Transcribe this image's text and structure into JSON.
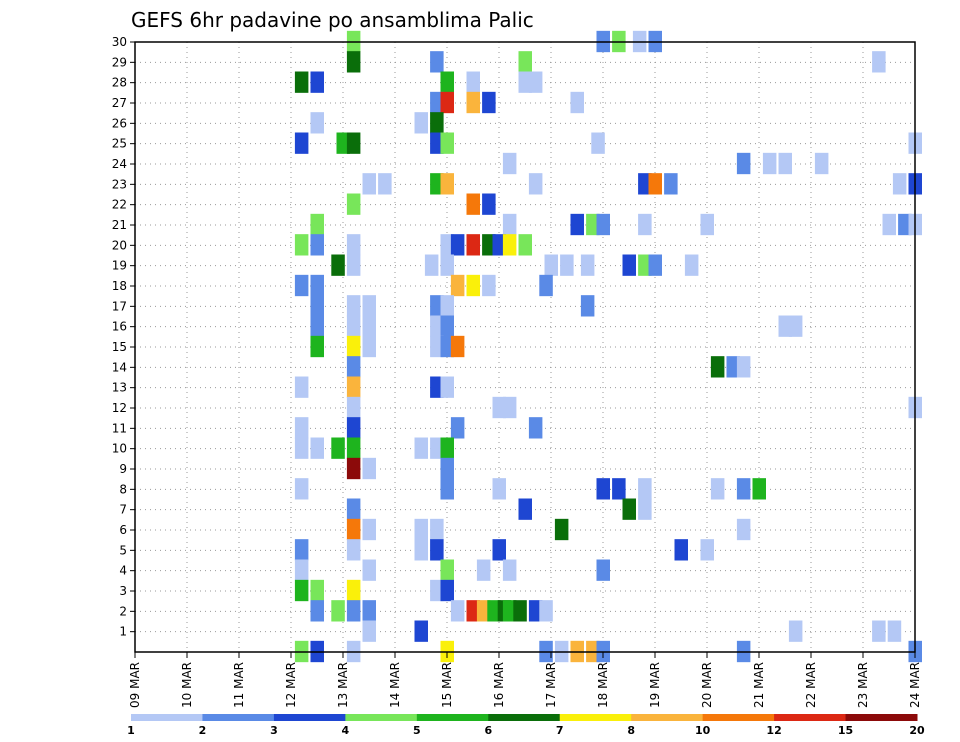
{
  "chart_data": {
    "type": "heatmap",
    "title": "GEFS 6hr padavine po ansamblima Palic",
    "x_tick_labels": [
      "09 MAR",
      "10 MAR",
      "11 MAR",
      "12 MAR",
      "13 MAR",
      "14 MAR",
      "15 MAR",
      "16 MAR",
      "17 MAR",
      "18 MAR",
      "19 MAR",
      "20 MAR",
      "21 MAR",
      "22 MAR",
      "23 MAR",
      "24 MAR"
    ],
    "y_tick_labels": [
      "1",
      "2",
      "3",
      "4",
      "5",
      "6",
      "7",
      "8",
      "9",
      "10",
      "11",
      "12",
      "13",
      "14",
      "15",
      "16",
      "17",
      "18",
      "19",
      "20",
      "21",
      "22",
      "23",
      "24",
      "25",
      "26",
      "27",
      "28",
      "29",
      "30"
    ],
    "xlim_days": [
      9,
      24
    ],
    "ylim": [
      0,
      30
    ],
    "grid": true,
    "legend": {
      "placement": "bottom",
      "levels": [
        "1",
        "2",
        "3",
        "4",
        "5",
        "6",
        "7",
        "8",
        "10",
        "12",
        "15",
        "20"
      ],
      "colors": [
        "#b4c8f5",
        "#5a8ae6",
        "#1e46d2",
        "#78e65a",
        "#1eb41e",
        "#0a6e0a",
        "#faf00a",
        "#fab43c",
        "#f5780a",
        "#dc2814",
        "#8c0a0a"
      ]
    },
    "cells_note_format": "[member, day_of_march, level_index]",
    "cells": [
      [
        30,
        13.2,
        3
      ],
      [
        30,
        18.0,
        1
      ],
      [
        30,
        18.3,
        3
      ],
      [
        30,
        18.7,
        0
      ],
      [
        30,
        19.0,
        1
      ],
      [
        29,
        13.2,
        5
      ],
      [
        29,
        14.8,
        1
      ],
      [
        29,
        16.5,
        3
      ],
      [
        29,
        23.3,
        0
      ],
      [
        28,
        12.2,
        5
      ],
      [
        28,
        12.5,
        2
      ],
      [
        28,
        15.0,
        4
      ],
      [
        28,
        15.5,
        0
      ],
      [
        28,
        16.5,
        0
      ],
      [
        28,
        16.7,
        0
      ],
      [
        27,
        14.8,
        1
      ],
      [
        27,
        15.0,
        9
      ],
      [
        27,
        15.5,
        7
      ],
      [
        27,
        15.8,
        2
      ],
      [
        27,
        17.5,
        0
      ],
      [
        26,
        12.5,
        0
      ],
      [
        26,
        14.5,
        0
      ],
      [
        26,
        14.8,
        5
      ],
      [
        25,
        12.2,
        2
      ],
      [
        25,
        13.0,
        4
      ],
      [
        25,
        13.2,
        5
      ],
      [
        25,
        14.8,
        2
      ],
      [
        25,
        15.0,
        3
      ],
      [
        25,
        17.9,
        0
      ],
      [
        25,
        24.0,
        0
      ],
      [
        24,
        16.2,
        0
      ],
      [
        24,
        20.7,
        1
      ],
      [
        24,
        21.2,
        0
      ],
      [
        24,
        21.5,
        0
      ],
      [
        24,
        22.2,
        0
      ],
      [
        23,
        13.5,
        0
      ],
      [
        23,
        13.8,
        0
      ],
      [
        23,
        14.8,
        4
      ],
      [
        23,
        15.0,
        7
      ],
      [
        23,
        16.7,
        0
      ],
      [
        23,
        18.8,
        2
      ],
      [
        23,
        19.0,
        8
      ],
      [
        23,
        19.3,
        1
      ],
      [
        23,
        23.7,
        0
      ],
      [
        23,
        24.0,
        2
      ],
      [
        22,
        13.2,
        3
      ],
      [
        22,
        15.5,
        8
      ],
      [
        22,
        15.8,
        2
      ],
      [
        21,
        12.5,
        3
      ],
      [
        21,
        16.2,
        0
      ],
      [
        21,
        17.5,
        2
      ],
      [
        21,
        17.8,
        3
      ],
      [
        21,
        18.0,
        1
      ],
      [
        21,
        18.8,
        0
      ],
      [
        21,
        20.0,
        0
      ],
      [
        21,
        23.5,
        0
      ],
      [
        21,
        23.8,
        1
      ],
      [
        21,
        24.0,
        0
      ],
      [
        20,
        12.2,
        3
      ],
      [
        20,
        12.5,
        1
      ],
      [
        20,
        13.2,
        0
      ],
      [
        20,
        15.0,
        0
      ],
      [
        20,
        15.2,
        2
      ],
      [
        20,
        15.5,
        9
      ],
      [
        20,
        15.8,
        5
      ],
      [
        20,
        16.0,
        2
      ],
      [
        20,
        16.2,
        6
      ],
      [
        20,
        16.5,
        3
      ],
      [
        19,
        12.9,
        5
      ],
      [
        19,
        13.2,
        0
      ],
      [
        19,
        14.7,
        0
      ],
      [
        19,
        15.0,
        0
      ],
      [
        19,
        17.0,
        0
      ],
      [
        19,
        17.3,
        0
      ],
      [
        19,
        17.7,
        0
      ],
      [
        19,
        18.5,
        2
      ],
      [
        19,
        18.8,
        3
      ],
      [
        19,
        19.0,
        1
      ],
      [
        19,
        19.7,
        0
      ],
      [
        18,
        12.2,
        1
      ],
      [
        18,
        12.5,
        1
      ],
      [
        18,
        15.2,
        7
      ],
      [
        18,
        15.5,
        6
      ],
      [
        18,
        15.8,
        0
      ],
      [
        18,
        16.9,
        1
      ],
      [
        17,
        12.5,
        1
      ],
      [
        17,
        13.2,
        0
      ],
      [
        17,
        13.5,
        0
      ],
      [
        17,
        14.8,
        1
      ],
      [
        17,
        15.0,
        0
      ],
      [
        17,
        17.7,
        1
      ],
      [
        16,
        12.5,
        1
      ],
      [
        16,
        13.2,
        0
      ],
      [
        16,
        13.5,
        0
      ],
      [
        16,
        14.8,
        0
      ],
      [
        16,
        15.0,
        1
      ],
      [
        16,
        21.5,
        0
      ],
      [
        16,
        21.7,
        0
      ],
      [
        15,
        12.5,
        4
      ],
      [
        15,
        13.2,
        6
      ],
      [
        15,
        13.5,
        0
      ],
      [
        15,
        14.8,
        0
      ],
      [
        15,
        15.0,
        1
      ],
      [
        15,
        15.2,
        8
      ],
      [
        14,
        13.2,
        1
      ],
      [
        14,
        20.2,
        5
      ],
      [
        14,
        20.5,
        1
      ],
      [
        14,
        20.7,
        0
      ],
      [
        13,
        12.2,
        0
      ],
      [
        13,
        13.2,
        7
      ],
      [
        13,
        14.8,
        2
      ],
      [
        13,
        15.0,
        0
      ],
      [
        12,
        13.2,
        0
      ],
      [
        12,
        16.0,
        0
      ],
      [
        12,
        16.2,
        0
      ],
      [
        12,
        24.0,
        0
      ],
      [
        11,
        12.2,
        0
      ],
      [
        11,
        13.2,
        2
      ],
      [
        11,
        15.2,
        1
      ],
      [
        11,
        16.7,
        1
      ],
      [
        10,
        12.2,
        0
      ],
      [
        10,
        12.5,
        0
      ],
      [
        10,
        12.9,
        4
      ],
      [
        10,
        13.2,
        4
      ],
      [
        10,
        14.5,
        0
      ],
      [
        10,
        14.8,
        0
      ],
      [
        10,
        15.0,
        4
      ],
      [
        9,
        13.2,
        10
      ],
      [
        9,
        13.5,
        0
      ],
      [
        9,
        15.0,
        1
      ],
      [
        8,
        12.2,
        0
      ],
      [
        8,
        15.0,
        1
      ],
      [
        8,
        16.0,
        0
      ],
      [
        8,
        18.0,
        2
      ],
      [
        8,
        18.3,
        2
      ],
      [
        8,
        18.8,
        0
      ],
      [
        8,
        20.2,
        0
      ],
      [
        8,
        20.7,
        1
      ],
      [
        8,
        21.0,
        4
      ],
      [
        7,
        13.2,
        1
      ],
      [
        7,
        16.5,
        2
      ],
      [
        7,
        18.5,
        5
      ],
      [
        7,
        18.8,
        0
      ],
      [
        6,
        13.2,
        8
      ],
      [
        6,
        13.5,
        0
      ],
      [
        6,
        14.5,
        0
      ],
      [
        6,
        14.8,
        0
      ],
      [
        6,
        17.2,
        5
      ],
      [
        6,
        20.7,
        0
      ],
      [
        5,
        12.2,
        1
      ],
      [
        5,
        13.2,
        0
      ],
      [
        5,
        14.5,
        0
      ],
      [
        5,
        14.8,
        2
      ],
      [
        5,
        16.0,
        2
      ],
      [
        5,
        19.5,
        2
      ],
      [
        5,
        20.0,
        0
      ],
      [
        4,
        12.2,
        0
      ],
      [
        4,
        13.5,
        0
      ],
      [
        4,
        15.0,
        3
      ],
      [
        4,
        15.7,
        0
      ],
      [
        4,
        16.2,
        0
      ],
      [
        4,
        18.0,
        1
      ],
      [
        3,
        12.2,
        4
      ],
      [
        3,
        12.5,
        3
      ],
      [
        3,
        13.2,
        6
      ],
      [
        3,
        14.8,
        0
      ],
      [
        3,
        15.0,
        2
      ],
      [
        2,
        12.5,
        1
      ],
      [
        2,
        12.9,
        3
      ],
      [
        2,
        13.2,
        1
      ],
      [
        2,
        13.5,
        1
      ],
      [
        2,
        15.2,
        0
      ],
      [
        2,
        15.5,
        9
      ],
      [
        2,
        15.7,
        7
      ],
      [
        2,
        15.9,
        4
      ],
      [
        2,
        16.1,
        5
      ],
      [
        2,
        16.2,
        4
      ],
      [
        2,
        16.4,
        5
      ],
      [
        2,
        16.7,
        2
      ],
      [
        2,
        16.9,
        0
      ],
      [
        1,
        13.5,
        0
      ],
      [
        1,
        14.5,
        2
      ],
      [
        1,
        21.7,
        0
      ],
      [
        1,
        23.3,
        0
      ],
      [
        1,
        23.6,
        0
      ],
      [
        0,
        12.2,
        3
      ],
      [
        0,
        12.5,
        2
      ],
      [
        0,
        13.2,
        0
      ],
      [
        0,
        15.0,
        6
      ],
      [
        0,
        16.9,
        1
      ],
      [
        0,
        17.2,
        0
      ],
      [
        0,
        17.5,
        7
      ],
      [
        0,
        17.8,
        7
      ],
      [
        0,
        18.0,
        1
      ],
      [
        0,
        20.7,
        1
      ],
      [
        0,
        24.0,
        1
      ]
    ]
  }
}
